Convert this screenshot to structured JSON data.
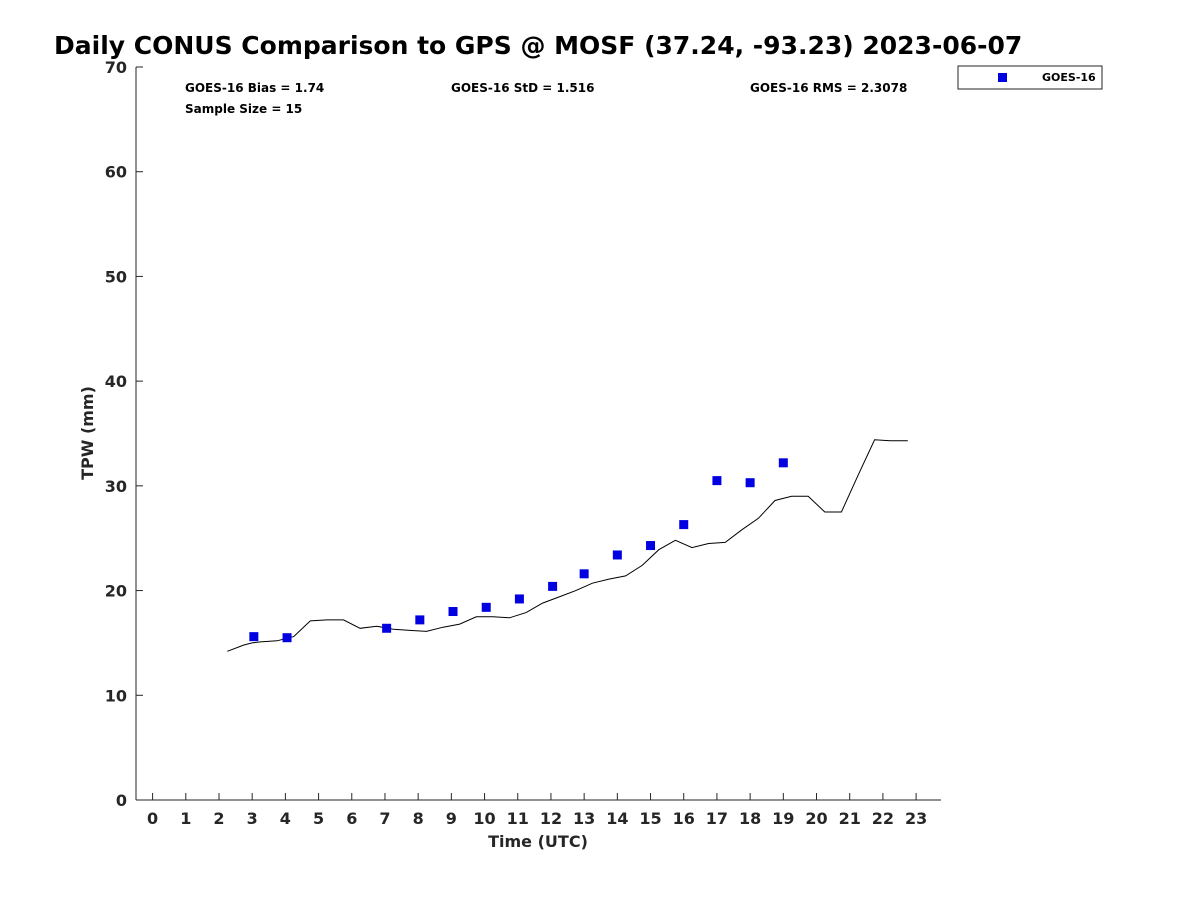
{
  "chart_data": {
    "type": "scatter",
    "title": "Daily CONUS Comparison to GPS @ MOSF (37.24, -93.23) 2023-06-07",
    "xlabel": "Time (UTC)",
    "ylabel": "TPW (mm)",
    "xlim": [
      -0.5,
      23.75
    ],
    "ylim": [
      0,
      70
    ],
    "xticks": [
      "0",
      "1",
      "2",
      "3",
      "4",
      "5",
      "6",
      "7",
      "8",
      "9",
      "10",
      "11",
      "12",
      "13",
      "14",
      "15",
      "16",
      "17",
      "18",
      "19",
      "20",
      "21",
      "22",
      "23"
    ],
    "yticks": [
      "0",
      "10",
      "20",
      "30",
      "40",
      "50",
      "60",
      "70"
    ],
    "grid": false,
    "legend_position": "top-right, outside plot",
    "stats": {
      "bias": "GOES-16 Bias = 1.74",
      "std": "GOES-16 StD = 1.516",
      "rms": "GOES-16 RMS = 2.3078",
      "sample": "Sample Size = 15"
    },
    "series": [
      {
        "name": "GOES-16",
        "kind": "scatter",
        "marker": "square",
        "color": "#0000e0",
        "x": [
          3.05,
          4.05,
          7.05,
          8.05,
          9.05,
          10.05,
          11.05,
          12.05,
          13.0,
          14.0,
          15.0,
          16.0,
          17.0,
          18.0,
          19.0
        ],
        "y": [
          15.6,
          15.5,
          16.4,
          17.2,
          18.0,
          18.4,
          19.2,
          20.4,
          21.6,
          23.4,
          24.3,
          26.3,
          30.5,
          30.3,
          32.2
        ]
      },
      {
        "kind": "line",
        "color": "#000000",
        "x": [
          2.25,
          2.75,
          3.0,
          3.25,
          3.75,
          4.25,
          4.75,
          5.25,
          5.75,
          6.25,
          6.75,
          7.25,
          7.75,
          8.25,
          8.75,
          9.25,
          9.75,
          10.25,
          10.75,
          11.25,
          11.75,
          12.25,
          12.75,
          13.25,
          13.75,
          14.25,
          14.75,
          15.25,
          15.75,
          16.25,
          16.75,
          17.25,
          17.75,
          18.25,
          18.75,
          19.25,
          19.75,
          20.25,
          20.75,
          21.25,
          21.75,
          22.25,
          22.75
        ],
        "y": [
          14.2,
          14.8,
          15.0,
          15.1,
          15.2,
          15.6,
          17.1,
          17.2,
          17.2,
          16.4,
          16.6,
          16.3,
          16.2,
          16.1,
          16.5,
          16.8,
          17.5,
          17.5,
          17.4,
          17.9,
          18.8,
          19.4,
          20.0,
          20.7,
          21.1,
          21.4,
          22.4,
          23.9,
          24.8,
          24.1,
          24.5,
          24.6,
          25.8,
          26.9,
          28.6,
          29.0,
          29.0,
          27.5,
          27.5,
          31.0,
          34.4,
          34.3,
          34.3
        ]
      }
    ]
  }
}
